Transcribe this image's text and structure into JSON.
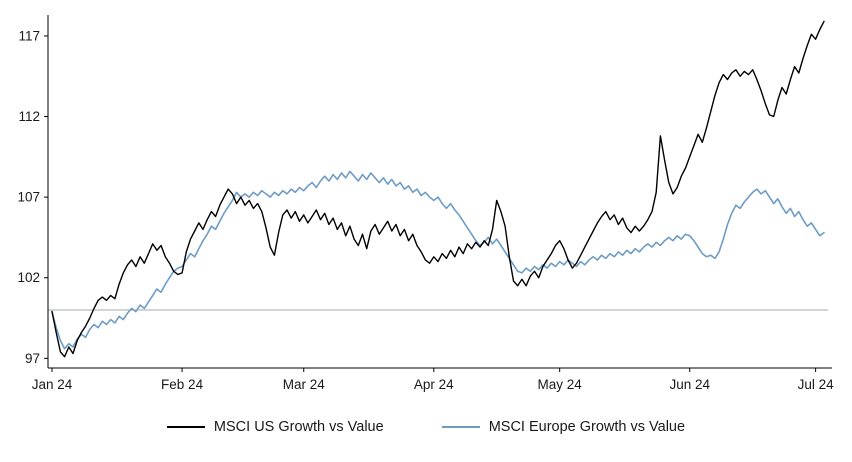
{
  "chart_data": {
    "type": "line",
    "title": "",
    "xlabel": "",
    "ylabel": "",
    "x_tick_labels": [
      "Jan 24",
      "Feb 24",
      "Mar 24",
      "Apr 24",
      "May 24",
      "Jun 24",
      "Jul 24"
    ],
    "month_tick_days": [
      0,
      31,
      60,
      91,
      121,
      152,
      182
    ],
    "y_ticks": [
      97,
      102,
      107,
      112,
      117
    ],
    "ylim_drawn": [
      96.4,
      118.3
    ],
    "reference_line_y": 100,
    "axis_color": "#000000",
    "reference_line_color": "#a9a9a9",
    "legend_position": "bottom-center",
    "grid": false,
    "series": [
      {
        "id": "us",
        "name": "MSCI US Growth vs Value",
        "color": "#000000",
        "stroke_width": 1.4,
        "values": [
          99.9,
          98.6,
          97.4,
          97.1,
          97.7,
          97.3,
          98.1,
          98.6,
          99.0,
          99.5,
          100.1,
          100.6,
          100.8,
          100.6,
          100.9,
          100.7,
          101.6,
          102.3,
          102.8,
          103.1,
          102.7,
          103.3,
          102.9,
          103.5,
          104.1,
          103.7,
          104.0,
          103.3,
          102.9,
          102.4,
          102.2,
          102.3,
          103.6,
          104.4,
          104.9,
          105.4,
          105.0,
          105.6,
          106.1,
          105.8,
          106.5,
          107.0,
          107.5,
          107.2,
          106.6,
          107.0,
          106.5,
          106.8,
          106.3,
          106.6,
          106.1,
          105.1,
          103.9,
          103.4,
          104.8,
          105.9,
          106.2,
          105.7,
          106.1,
          105.5,
          105.9,
          105.4,
          105.8,
          106.2,
          105.6,
          106.0,
          105.3,
          105.7,
          105.0,
          105.4,
          104.6,
          105.2,
          104.4,
          104.0,
          104.7,
          103.8,
          104.9,
          105.3,
          104.7,
          105.1,
          105.5,
          104.9,
          105.3,
          104.6,
          105.0,
          104.3,
          104.7,
          104.0,
          103.6,
          103.1,
          102.9,
          103.3,
          103.0,
          103.5,
          103.2,
          103.7,
          103.3,
          103.9,
          103.5,
          104.1,
          103.8,
          104.2,
          103.9,
          104.3,
          104.0,
          105.0,
          106.8,
          106.1,
          105.2,
          103.3,
          101.8,
          101.5,
          101.9,
          101.5,
          102.1,
          102.4,
          102.0,
          102.7,
          103.1,
          103.5,
          104.0,
          104.3,
          103.8,
          103.1,
          102.6,
          102.9,
          103.4,
          103.9,
          104.4,
          104.9,
          105.4,
          105.8,
          106.1,
          105.6,
          105.9,
          105.3,
          105.7,
          105.1,
          104.8,
          105.2,
          104.9,
          105.2,
          105.6,
          106.1,
          107.3,
          110.8,
          109.3,
          107.9,
          107.2,
          107.6,
          108.3,
          108.8,
          109.5,
          110.2,
          110.9,
          110.4,
          111.3,
          112.3,
          113.3,
          114.1,
          114.6,
          114.3,
          114.7,
          114.9,
          114.5,
          114.8,
          114.6,
          114.9,
          114.3,
          113.6,
          112.8,
          112.1,
          112.0,
          113.0,
          113.8,
          113.4,
          114.3,
          115.1,
          114.7,
          115.6,
          116.4,
          117.1,
          116.8,
          117.4,
          117.9
        ]
      },
      {
        "id": "europe",
        "name": "MSCI Europe Growth vs Value",
        "color": "#6d9cc6",
        "stroke_width": 1.6,
        "values": [
          99.9,
          98.9,
          98.1,
          97.6,
          97.9,
          97.7,
          98.2,
          98.5,
          98.3,
          98.8,
          99.1,
          98.9,
          99.3,
          99.1,
          99.4,
          99.2,
          99.6,
          99.4,
          99.8,
          100.1,
          99.9,
          100.3,
          100.1,
          100.5,
          100.9,
          101.3,
          101.1,
          101.6,
          102.0,
          102.4,
          102.6,
          102.7,
          103.1,
          103.5,
          103.3,
          103.8,
          104.3,
          104.7,
          105.2,
          105.0,
          105.5,
          106.0,
          106.4,
          106.8,
          107.3,
          107.0,
          107.2,
          107.0,
          107.3,
          107.1,
          107.4,
          107.2,
          107.0,
          107.3,
          107.1,
          107.4,
          107.2,
          107.5,
          107.3,
          107.6,
          107.4,
          107.7,
          107.9,
          107.6,
          108.0,
          108.3,
          108.0,
          108.4,
          108.1,
          108.5,
          108.2,
          108.6,
          108.3,
          108.0,
          108.4,
          108.1,
          108.5,
          108.2,
          107.9,
          108.2,
          107.8,
          108.1,
          107.7,
          107.9,
          107.5,
          107.7,
          107.3,
          107.5,
          107.1,
          107.3,
          107.0,
          106.8,
          107.0,
          106.6,
          106.3,
          106.6,
          106.2,
          105.9,
          105.5,
          105.1,
          104.7,
          104.3,
          104.0,
          104.2,
          104.5,
          104.1,
          104.4,
          104.0,
          103.6,
          103.2,
          102.8,
          102.4,
          102.3,
          102.6,
          102.4,
          102.7,
          102.5,
          102.8,
          102.6,
          102.9,
          102.7,
          103.0,
          102.8,
          103.1,
          102.9,
          102.7,
          103.0,
          102.8,
          103.1,
          103.3,
          103.1,
          103.4,
          103.2,
          103.5,
          103.3,
          103.6,
          103.4,
          103.7,
          103.5,
          103.8,
          103.6,
          103.9,
          104.1,
          103.9,
          104.2,
          104.0,
          104.3,
          104.5,
          104.3,
          104.6,
          104.4,
          104.7,
          104.6,
          104.3,
          103.9,
          103.5,
          103.3,
          103.4,
          103.2,
          103.6,
          104.4,
          105.3,
          106.0,
          106.5,
          106.3,
          106.7,
          107.0,
          107.3,
          107.5,
          107.2,
          107.4,
          107.0,
          106.6,
          106.9,
          106.4,
          106.0,
          106.3,
          105.8,
          106.1,
          105.6,
          105.2,
          105.4,
          105.0,
          104.6,
          104.8
        ]
      }
    ]
  },
  "legend": {
    "us_label": "MSCI US Growth vs Value",
    "europe_label": "MSCI Europe Growth vs Value"
  }
}
